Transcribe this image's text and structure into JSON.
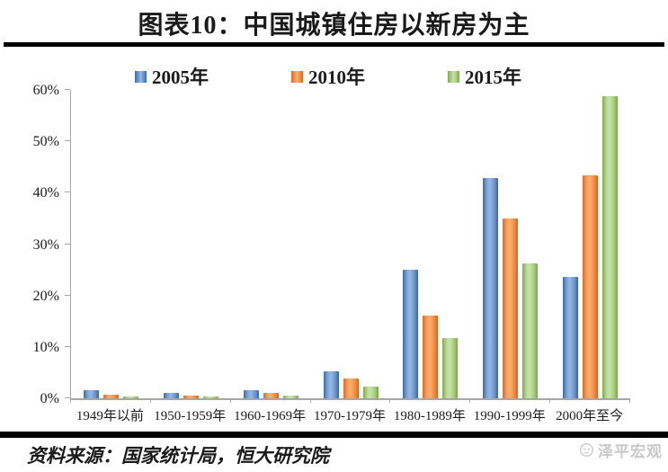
{
  "header": {
    "title": "图表10：中国城镇住房以新房为主"
  },
  "chart_data": {
    "type": "bar",
    "title": "图表10：中国城镇住房以新房为主",
    "categories": [
      "1949年以前",
      "1950-1959年",
      "1960-1969年",
      "1970-1979年",
      "1980-1989年",
      "1990-1999年",
      "2000年至今"
    ],
    "series": [
      {
        "name": "2005年",
        "color": "#4f81bd",
        "values": [
          1.5,
          1.0,
          1.5,
          5.2,
          25.0,
          42.8,
          23.6
        ]
      },
      {
        "name": "2010年",
        "color": "#f79646",
        "values": [
          0.7,
          0.6,
          1.0,
          3.8,
          16.1,
          35.0,
          43.3
        ]
      },
      {
        "name": "2015年",
        "color": "#9bbb59",
        "values": [
          0.4,
          0.3,
          0.5,
          2.3,
          11.7,
          26.3,
          58.7
        ]
      }
    ],
    "xlabel": "",
    "ylabel": "",
    "ylim": [
      0,
      60
    ],
    "yticks": [
      "0%",
      "10%",
      "20%",
      "30%",
      "40%",
      "50%",
      "60%"
    ],
    "grid": false,
    "legend_position": "top"
  },
  "footer": {
    "source": "资料来源：国家统计局，恒大研究院",
    "watermark": "泽平宏观"
  }
}
